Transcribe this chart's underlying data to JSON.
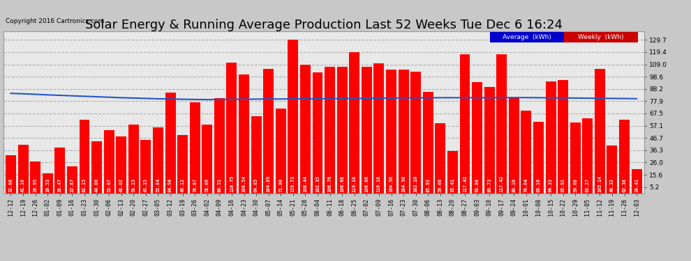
{
  "title": "Solar Energy & Running Average Production Last 52 Weeks Tue Dec 6 16:24",
  "copyright": "Copyright 2016 Cartronics.com",
  "bar_color": "#ff0000",
  "avg_line_color": "#2255cc",
  "background_color": "#c8c8c8",
  "plot_bg_color": "#e8e8e8",
  "categories": [
    "12-12",
    "12-19",
    "12-26",
    "01-02",
    "01-09",
    "01-16",
    "01-23",
    "01-30",
    "02-06",
    "02-13",
    "02-20",
    "02-27",
    "03-05",
    "03-12",
    "03-19",
    "03-26",
    "04-02",
    "04-09",
    "04-16",
    "04-23",
    "04-30",
    "05-07",
    "05-14",
    "05-21",
    "05-28",
    "06-04",
    "06-11",
    "06-18",
    "06-25",
    "07-02",
    "07-09",
    "07-16",
    "07-23",
    "07-30",
    "08-06",
    "08-13",
    "08-20",
    "08-27",
    "09-03",
    "09-10",
    "09-17",
    "09-24",
    "10-01",
    "10-08",
    "10-15",
    "10-22",
    "10-29",
    "11-05",
    "11-12",
    "11-19",
    "11-26",
    "12-03"
  ],
  "weekly_values": [
    32.06,
    41.1,
    26.95,
    16.53,
    38.47,
    22.87,
    62.15,
    44.06,
    53.07,
    48.02,
    58.15,
    45.15,
    55.84,
    84.94,
    49.12,
    76.87,
    58.06,
    80.51,
    110.75,
    100.54,
    64.85,
    104.89,
    71.6,
    129.73,
    108.44,
    102.35,
    106.76,
    106.68,
    119.1,
    106.66,
    110.1,
    104.56,
    104.5,
    103.1,
    85.92,
    59.06,
    35.41,
    117.42,
    93.8,
    89.73,
    117.42,
    80.16,
    70.04,
    60.16,
    94.33,
    95.92,
    59.68,
    63.27,
    105.14,
    40.32,
    62.38,
    20.41
  ],
  "avg_values": [
    84.5,
    84.1,
    83.7,
    83.2,
    82.8,
    82.4,
    82.0,
    81.6,
    81.2,
    80.8,
    80.5,
    80.2,
    79.9,
    79.7,
    79.5,
    79.3,
    79.2,
    79.3,
    79.4,
    79.5,
    79.6,
    79.7,
    79.7,
    79.8,
    79.9,
    79.9,
    80.0,
    80.1,
    80.2,
    80.3,
    80.4,
    80.5,
    80.6,
    80.7,
    80.7,
    80.8,
    80.8,
    80.8,
    80.8,
    80.8,
    80.9,
    80.9,
    80.9,
    80.8,
    80.7,
    80.6,
    80.5,
    80.4,
    80.3,
    80.2,
    80.1,
    80.0
  ],
  "yticks": [
    5.2,
    15.6,
    26.0,
    36.3,
    46.7,
    57.1,
    67.5,
    77.9,
    88.2,
    98.6,
    109.0,
    119.4,
    129.7
  ],
  "ylim": [
    0,
    137
  ],
  "title_fontsize": 13,
  "tick_fontsize": 6.0,
  "bar_value_fontsize": 4.8,
  "legend_avg_color": "#0000cc",
  "legend_weekly_color": "#cc0000",
  "grid_color": "#b0b0b0",
  "grid_style": "--"
}
